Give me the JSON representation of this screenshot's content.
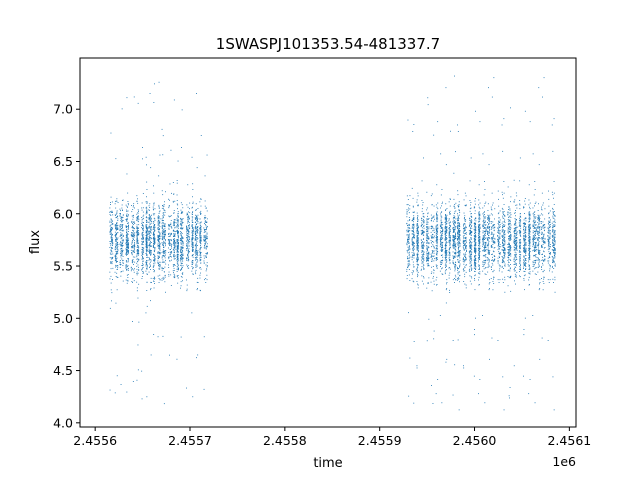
{
  "chart_data": {
    "type": "scatter",
    "title": "1SWASPJ101353.54-481337.7",
    "xlabel": "time",
    "ylabel": "flux",
    "x_offset_label": "1e6",
    "xlim": [
      2455584,
      2456107
    ],
    "ylim": [
      3.96,
      7.49
    ],
    "x_ticks": [
      2455600,
      2455700,
      2455800,
      2455900,
      2456000,
      2456100
    ],
    "x_tick_labels": [
      "2.4556",
      "2.4557",
      "2.4558",
      "2.4559",
      "2.4560",
      "2.4561"
    ],
    "y_ticks": [
      4.0,
      4.5,
      5.0,
      5.5,
      6.0,
      6.5,
      7.0
    ],
    "y_tick_labels": [
      "4.0",
      "4.5",
      "5.0",
      "5.5",
      "6.0",
      "6.5",
      "7.0"
    ],
    "grid": false,
    "point_color": "#1f77b4",
    "series": [
      {
        "values_description": "dense nightly clusters",
        "clusters": [
          {
            "x_start": 2455615,
            "x_end": 2455720,
            "y_center": 5.75,
            "y_spread": 0.3,
            "y_min": 4.18,
            "y_max": 7.27
          },
          {
            "x_start": 2455928,
            "x_end": 2456082,
            "y_center": 5.75,
            "y_spread": 0.3,
            "y_min": 4.12,
            "y_max": 7.33
          }
        ]
      }
    ]
  }
}
